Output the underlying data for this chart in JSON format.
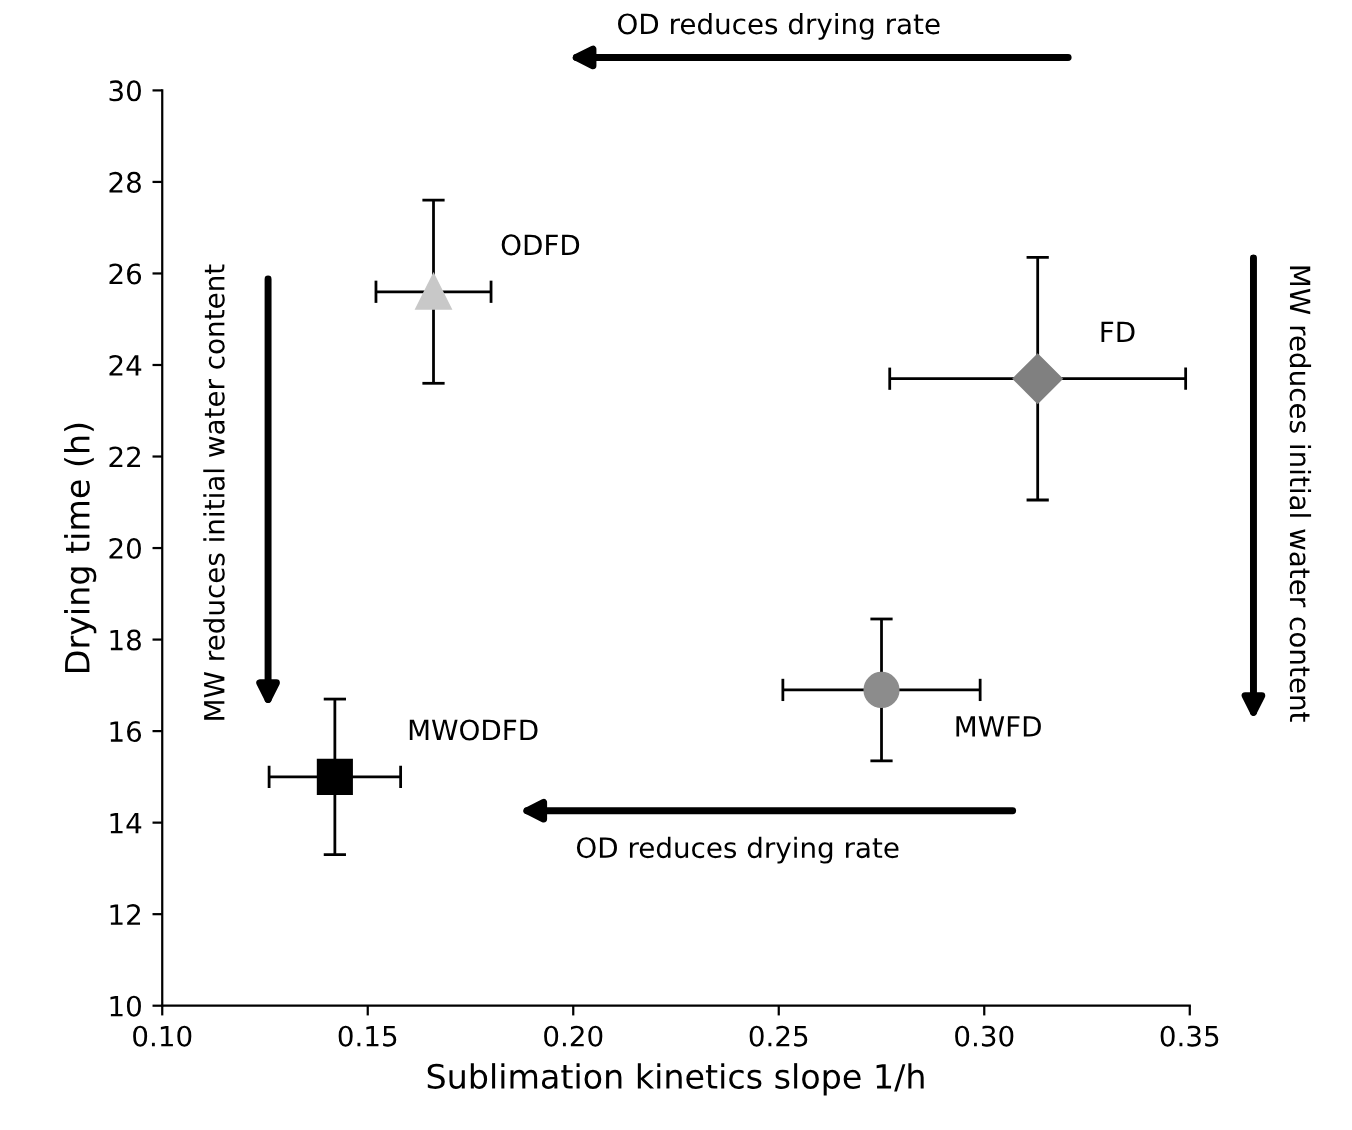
{
  "chart_data": {
    "type": "scatter",
    "xlabel": "Sublimation kinetics slope 1/h",
    "ylabel": "Drying time (h)",
    "xlim": [
      0.1,
      0.35
    ],
    "xticks": [
      {
        "value": 0.1,
        "label": "0.10"
      },
      {
        "value": 0.15,
        "label": "0.15"
      },
      {
        "value": 0.2,
        "label": "0.20"
      },
      {
        "value": 0.25,
        "label": "0.25"
      },
      {
        "value": 0.3,
        "label": "0.30"
      },
      {
        "value": 0.35,
        "label": "0.35"
      }
    ],
    "ylim": [
      10,
      30
    ],
    "yticks": [
      10,
      12,
      14,
      16,
      18,
      20,
      22,
      24,
      26,
      28,
      30
    ],
    "grid": false,
    "legend": false,
    "series": [
      {
        "name": "ODFD",
        "color": "#c8c8c8",
        "marker": "triangle",
        "x": [
          0.166
        ],
        "values": [
          25.6
        ],
        "errors": [
          2.0
        ],
        "xerrors": [
          0.014
        ]
      },
      {
        "name": "FD",
        "color": "#808080",
        "marker": "diamond",
        "x": [
          0.313
        ],
        "values": [
          23.7
        ],
        "errors": [
          2.65
        ],
        "xerrors": [
          0.036
        ]
      },
      {
        "name": "MWFD",
        "color": "#8c8c8c",
        "marker": "circle",
        "x": [
          0.275
        ],
        "values": [
          16.9
        ],
        "errors": [
          1.55
        ],
        "xerrors": [
          0.024
        ]
      },
      {
        "name": "MWODFD",
        "color": "#000000",
        "marker": "square",
        "x": [
          0.142
        ],
        "values": [
          15.0
        ],
        "errors": [
          1.7
        ],
        "xerrors": [
          0.016
        ]
      }
    ],
    "annotations": [
      "OD reduces drying rate",
      "OD reduces drying rate",
      "MW reduces initial water content",
      "MW reduces initial water content"
    ]
  }
}
